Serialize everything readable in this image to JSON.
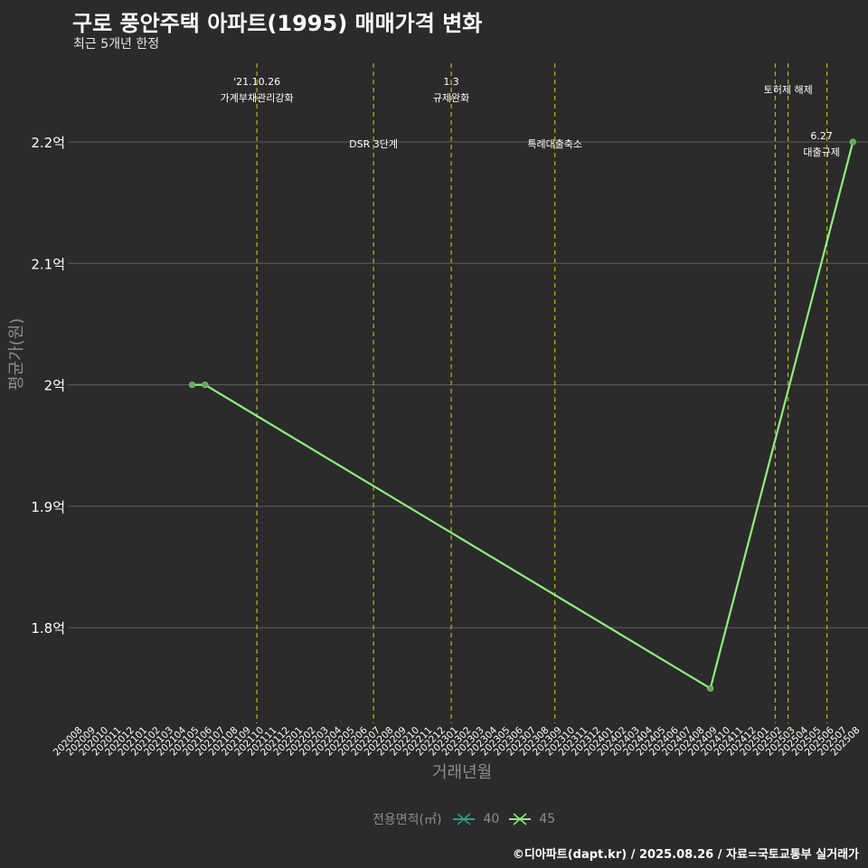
{
  "title": "구로 풍안주택 아파트(1995) 매매가격 변화",
  "subtitle": "최근 5개년 한정",
  "caption": "©디아파트(dapt.kr) / 2025.08.26 / 자료=국토교통부 실거래가",
  "legend": {
    "title": "전용면적(㎡)",
    "items": [
      {
        "label": "40",
        "color": "#2a9d8f"
      },
      {
        "label": "45",
        "color": "#90ee7f"
      }
    ]
  },
  "colors": {
    "background": "#2b2b2b",
    "grid": "#5e5e5e",
    "vline": "#d4d400",
    "series_45": "#90ee7f",
    "series_40": "#2a9d8f",
    "axis_text": "#ffffff",
    "axis_title": "#8c8c8c"
  },
  "chart_data": {
    "type": "line",
    "xlabel": "거래년월",
    "ylabel": "평균가(원)",
    "x_categories": [
      "202008",
      "202009",
      "202010",
      "202011",
      "202012",
      "202101",
      "202102",
      "202103",
      "202104",
      "202105",
      "202106",
      "202107",
      "202108",
      "202109",
      "202110",
      "202111",
      "202112",
      "202201",
      "202202",
      "202203",
      "202204",
      "202205",
      "202206",
      "202207",
      "202208",
      "202209",
      "202210",
      "202211",
      "202212",
      "202301",
      "202302",
      "202303",
      "202304",
      "202305",
      "202306",
      "202307",
      "202308",
      "202309",
      "202310",
      "202311",
      "202312",
      "202401",
      "202402",
      "202403",
      "202404",
      "202405",
      "202406",
      "202407",
      "202408",
      "202409",
      "202410",
      "202411",
      "202412",
      "202501",
      "202502",
      "202503",
      "202504",
      "202505",
      "202506",
      "202507",
      "202508"
    ],
    "y_ticks": [
      {
        "value": 1.8,
        "label": "1.8억"
      },
      {
        "value": 1.9,
        "label": "1.9억"
      },
      {
        "value": 2.0,
        "label": "2억"
      },
      {
        "value": 2.1,
        "label": "2.1억"
      },
      {
        "value": 2.2,
        "label": "2.2억"
      }
    ],
    "ylim": [
      1.73,
      2.27
    ],
    "grid": true,
    "legend_position": "bottom",
    "series": [
      {
        "name": "45",
        "points": [
          {
            "x": "202105",
            "y": 2.0
          },
          {
            "x": "202106",
            "y": 2.0
          },
          {
            "x": "202409",
            "y": 1.75
          },
          {
            "x": "202508",
            "y": 2.2
          }
        ]
      }
    ],
    "event_lines": [
      {
        "x": "202110",
        "lines": [
          "'21.10.26",
          "가계부채관리강화"
        ],
        "row": "top"
      },
      {
        "x": "202207",
        "lines": [
          "DSR 3단계"
        ],
        "row": "middle"
      },
      {
        "x": "202301",
        "lines": [
          "1.3",
          "규제완화"
        ],
        "row": "top"
      },
      {
        "x": "202309",
        "lines": [
          "특례대출축소"
        ],
        "row": "middle"
      },
      {
        "x": "202502",
        "lines": [],
        "row": "none"
      },
      {
        "x": "202503",
        "lines": [
          "토허제 해제"
        ],
        "row": "top2"
      },
      {
        "x": "202506",
        "lines": [
          "6.27",
          "대출규제"
        ],
        "row": "high"
      }
    ]
  }
}
